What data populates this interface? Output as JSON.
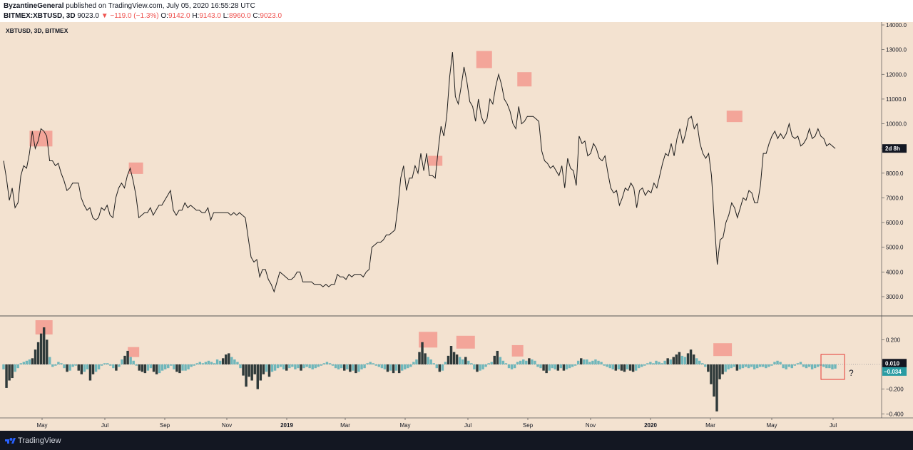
{
  "header": {
    "author": "ByzantineGeneral",
    "published": "published on TradingView.com, July 05, 2020 16:55:28 UTC",
    "symbol": "BITMEX:XBTUSD, 3D",
    "price": "9023.0",
    "arrow": "▼",
    "change": "−119.0 (−1.3%)",
    "o_label": "O:",
    "o_value": "9142.0",
    "h_label": "H:",
    "h_value": "9143.0",
    "l_label": "L:",
    "l_value": "8960.0",
    "c_label": "C:",
    "c_value": "9023.0"
  },
  "footer": {
    "brand": "TradingView"
  },
  "chart_data": [
    {
      "type": "line",
      "title": "XBTUSD, 3D, BITMEX",
      "x_tick_labels": [
        "May",
        "Jul",
        "Sep",
        "Nov",
        "2019",
        "Mar",
        "May",
        "Jul",
        "Sep",
        "Nov",
        "2020",
        "Mar",
        "May",
        "Jul"
      ],
      "y_tick_labels": [
        "14000.0",
        "13000.0",
        "12000.0",
        "11000.0",
        "10000.0",
        "9000.0",
        "8000.0",
        "7000.0",
        "6000.0",
        "5000.0",
        "4000.0",
        "3000.0"
      ],
      "ylim": [
        2200,
        14200
      ],
      "countdown_label": "2d 8h",
      "series": [
        {
          "values": [
            8500,
            7800,
            6900,
            7400,
            6600,
            6800,
            7900,
            8300,
            8200,
            8800,
            9700,
            9000,
            9300,
            9800,
            9700,
            9500,
            8500,
            8500,
            8300,
            8400,
            8000,
            7700,
            7300,
            7400,
            7600,
            7600,
            7600,
            7000,
            6700,
            6500,
            6600,
            6200,
            6100,
            6200,
            6600,
            6500,
            6700,
            6300,
            6200,
            7000,
            7400,
            7600,
            7400,
            7900,
            8200,
            7700,
            7100,
            6200,
            6300,
            6400,
            6400,
            6600,
            6300,
            6500,
            6700,
            6700,
            6900,
            7100,
            7300,
            6500,
            6300,
            6500,
            6500,
            6800,
            6600,
            6700,
            6600,
            6500,
            6500,
            6400,
            6400,
            6600,
            6100,
            6400,
            6400,
            6400,
            6400,
            6400,
            6400,
            6300,
            6400,
            6300,
            6400,
            6300,
            6200,
            5400,
            4600,
            4400,
            4500,
            3800,
            4100,
            4100,
            3700,
            3500,
            3200,
            3600,
            4000,
            3900,
            3800,
            3700,
            3700,
            3800,
            4000,
            4000,
            3600,
            3600,
            3600,
            3600,
            3500,
            3500,
            3500,
            3400,
            3500,
            3400,
            3500,
            3500,
            3900,
            3800,
            3800,
            3700,
            3900,
            3800,
            3900,
            3900,
            3900,
            3800,
            4000,
            4100,
            5000,
            5100,
            5200,
            5200,
            5300,
            5500,
            5500,
            5600,
            5700,
            6600,
            7800,
            8300,
            7300,
            7800,
            7800,
            8300,
            8000,
            8800,
            8100,
            8800,
            7900,
            7900,
            7800,
            8900,
            9900,
            9500,
            10300,
            11900,
            12900,
            11100,
            10800,
            11500,
            12300,
            11700,
            10900,
            10700,
            10100,
            11000,
            10300,
            10000,
            10200,
            11000,
            10800,
            11500,
            12000,
            11600,
            11000,
            10800,
            10500,
            10000,
            9800,
            10700,
            10000,
            10100,
            10300,
            10300,
            10300,
            10200,
            10100,
            8900,
            8500,
            8400,
            8200,
            8300,
            8100,
            7900,
            8300,
            7400,
            8600,
            8200,
            8100,
            7500,
            9500,
            9200,
            9300,
            8700,
            8800,
            9200,
            9000,
            8600,
            8500,
            8700,
            8000,
            7400,
            7200,
            7300,
            6700,
            7000,
            7400,
            7300,
            7600,
            7400,
            6600,
            7300,
            7400,
            7100,
            7300,
            7200,
            7600,
            7400,
            7900,
            8400,
            8800,
            8700,
            9200,
            8700,
            9400,
            9800,
            9200,
            9600,
            10200,
            10300,
            9800,
            10000,
            9200,
            8800,
            8600,
            8800,
            7900,
            6000,
            4300,
            5300,
            5400,
            6000,
            6300,
            6800,
            6600,
            6200,
            6600,
            7000,
            6900,
            7300,
            7200,
            6800,
            6800,
            7500,
            8800,
            8800,
            9200,
            9500,
            9700,
            9400,
            9600,
            9400,
            9600,
            10000,
            9500,
            9400,
            9500,
            9100,
            9200,
            9400,
            9800,
            9400,
            9500,
            9800,
            9500,
            9400,
            9100,
            9200,
            9100,
            9000
          ]
        }
      ]
    },
    {
      "type": "bar",
      "y_tick_labels": [
        "0.200",
        "−0.200",
        "−0.400"
      ],
      "ylim": [
        -0.44,
        0.4
      ],
      "last_value_label": "−0.034",
      "ref_value_label": "0.010",
      "annotation_text": "?",
      "series": [
        {
          "values": [
            -0.04,
            -0.19,
            -0.13,
            -0.11,
            -0.06,
            -0.03,
            0.01,
            0.02,
            0.03,
            0.04,
            0.05,
            0.12,
            0.18,
            0.25,
            0.3,
            0.2,
            0.06,
            -0.02,
            -0.01,
            0.02,
            0.01,
            -0.03,
            -0.06,
            -0.05,
            -0.02,
            -0.01,
            -0.05,
            -0.08,
            -0.06,
            -0.04,
            -0.13,
            -0.08,
            -0.06,
            -0.04,
            -0.01,
            0.01,
            0.01,
            -0.01,
            -0.03,
            -0.05,
            -0.02,
            0.04,
            0.07,
            0.11,
            0.06,
            0.03,
            -0.01,
            -0.05,
            -0.06,
            -0.07,
            -0.05,
            -0.03,
            -0.06,
            -0.08,
            -0.07,
            -0.05,
            -0.04,
            -0.03,
            -0.01,
            -0.04,
            -0.06,
            -0.07,
            -0.05,
            -0.05,
            -0.04,
            -0.02,
            -0.01,
            0.01,
            0.02,
            0.01,
            0.02,
            0.03,
            0.02,
            0.01,
            0.04,
            0.03,
            0.05,
            0.08,
            0.09,
            0.06,
            0.04,
            0.02,
            -0.03,
            -0.09,
            -0.18,
            -0.1,
            -0.13,
            -0.08,
            -0.2,
            -0.13,
            -0.08,
            -0.06,
            -0.1,
            -0.06,
            -0.05,
            -0.03,
            -0.02,
            -0.04,
            -0.05,
            -0.03,
            -0.02,
            -0.04,
            -0.03,
            -0.05,
            -0.03,
            -0.02,
            -0.03,
            -0.04,
            -0.03,
            -0.02,
            -0.01,
            0.01,
            0.02,
            0.01,
            -0.01,
            -0.03,
            -0.04,
            -0.03,
            -0.05,
            -0.04,
            -0.06,
            -0.05,
            -0.07,
            -0.06,
            -0.04,
            -0.03,
            0.01,
            0.02,
            0.01,
            -0.01,
            -0.02,
            -0.03,
            -0.04,
            -0.06,
            -0.05,
            -0.07,
            -0.05,
            -0.07,
            -0.05,
            -0.04,
            -0.03,
            -0.02,
            0.02,
            0.04,
            0.1,
            0.18,
            0.09,
            0.06,
            0.04,
            0.01,
            -0.03,
            -0.06,
            -0.05,
            0.02,
            0.07,
            0.15,
            0.1,
            0.08,
            0.06,
            0.04,
            0.06,
            0.03,
            0.01,
            -0.04,
            -0.06,
            -0.05,
            -0.04,
            -0.02,
            0.01,
            0.02,
            0.07,
            0.11,
            0.06,
            0.03,
            0.01,
            -0.03,
            -0.04,
            -0.03,
            0.02,
            0.03,
            0.04,
            0.03,
            0.05,
            0.04,
            0.03,
            -0.02,
            -0.03,
            -0.05,
            -0.07,
            -0.05,
            -0.03,
            -0.04,
            -0.05,
            -0.03,
            -0.05,
            -0.04,
            -0.03,
            -0.02,
            -0.01,
            0.03,
            0.05,
            0.04,
            0.04,
            0.02,
            0.03,
            0.04,
            0.03,
            0.02,
            -0.01,
            -0.02,
            -0.03,
            -0.04,
            -0.05,
            -0.04,
            -0.05,
            -0.06,
            -0.04,
            -0.05,
            -0.06,
            -0.05,
            -0.03,
            -0.02,
            -0.01,
            0.01,
            0.02,
            0.01,
            0.03,
            0.02,
            0.01,
            0.03,
            0.05,
            0.04,
            0.06,
            0.08,
            0.1,
            0.07,
            0.06,
            0.09,
            0.12,
            0.08,
            0.05,
            0.03,
            0.01,
            -0.02,
            -0.06,
            -0.16,
            -0.26,
            -0.38,
            -0.12,
            -0.08,
            -0.06,
            -0.04,
            -0.03,
            -0.02,
            -0.05,
            -0.04,
            -0.03,
            -0.02,
            -0.03,
            -0.02,
            -0.04,
            -0.03,
            -0.02,
            -0.02,
            -0.03,
            -0.02,
            -0.01,
            0.02,
            0.03,
            0.02,
            -0.03,
            -0.04,
            -0.02,
            -0.03,
            -0.01,
            0.01,
            0.02,
            -0.02,
            -0.03,
            -0.02,
            -0.04,
            -0.03,
            -0.02,
            -0.01,
            -0.02,
            -0.03,
            -0.03,
            -0.04,
            -0.034
          ]
        }
      ]
    }
  ]
}
